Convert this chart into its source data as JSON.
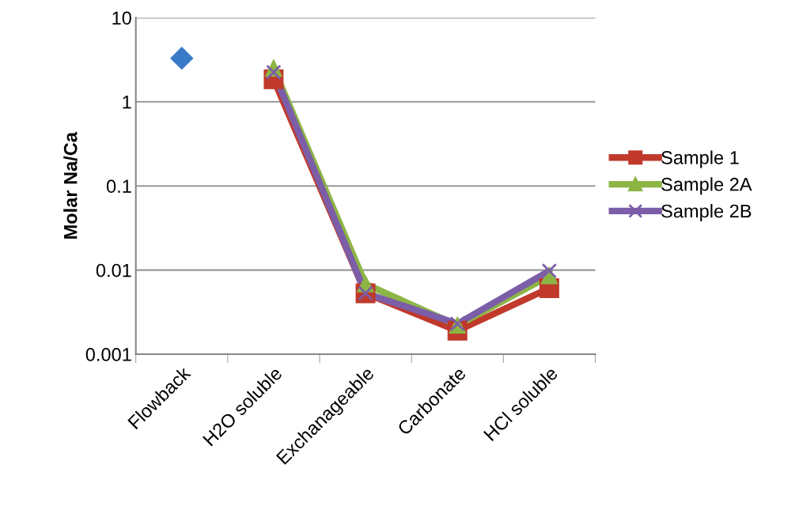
{
  "chart_data": {
    "type": "line",
    "ylabel": "Molar Na/Ca",
    "log": true,
    "categories": [
      "Flowback",
      "H2O soluble",
      "Exchanageable",
      "Carbonate",
      "HCl soluble"
    ],
    "ylim": [
      0.001,
      10
    ],
    "yticks": [
      {
        "value": 0.001,
        "label": "0.001"
      },
      {
        "value": 0.01,
        "label": "0.01"
      },
      {
        "value": 0.1,
        "label": "0.1"
      },
      {
        "value": 1,
        "label": "1"
      },
      {
        "value": 10,
        "label": "10"
      }
    ],
    "grid": "y",
    "legend": "right",
    "series": [
      {
        "type": "scatter",
        "color": "#3a7bc8",
        "marker": "diamond",
        "values": [
          3.3,
          null,
          null,
          null,
          null
        ]
      },
      {
        "name": "Sample 1",
        "color": "#c0392b",
        "marker": "square",
        "values": [
          null,
          1.85,
          0.0053,
          0.0019,
          0.0061
        ]
      },
      {
        "name": "Sample 2A",
        "color": "#8db545",
        "marker": "triangle",
        "values": [
          null,
          2.5,
          0.0068,
          0.0022,
          0.0085
        ]
      },
      {
        "name": "Sample 2B",
        "color": "#7b5ea7",
        "marker": "cross",
        "values": [
          null,
          2.25,
          0.0053,
          0.0023,
          0.0098
        ]
      }
    ]
  }
}
